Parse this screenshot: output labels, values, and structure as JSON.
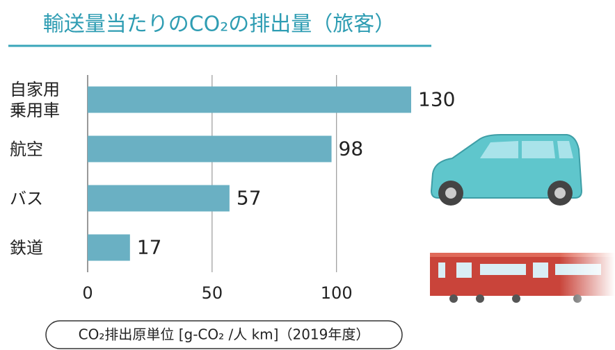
{
  "chart_data": {
    "type": "barh",
    "title": "輸送量当たりのCO₂の排出量（旅客）",
    "categories": [
      "自家用乗用車",
      "航空",
      "バス",
      "鉄道"
    ],
    "values": [
      130,
      98,
      57,
      17
    ],
    "color": "#6ab0c3",
    "xlim": [
      0,
      130
    ],
    "xticks": [
      0,
      50,
      100
    ],
    "grid": true,
    "x_label": "CO₂排出原単位 [g-CO₂ /人 km]（2019年度）"
  }
}
